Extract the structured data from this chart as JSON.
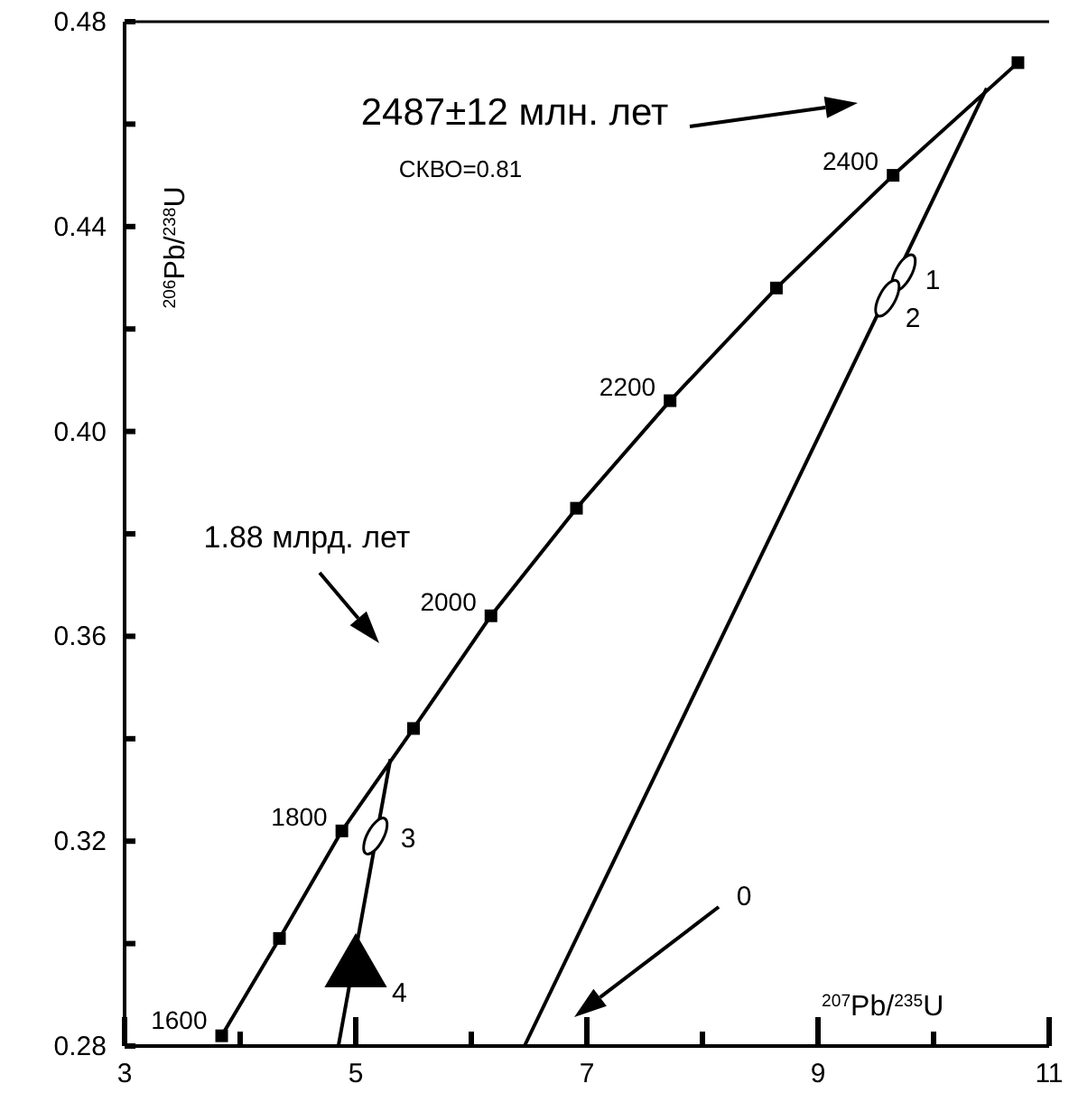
{
  "chart_data": {
    "type": "line",
    "xlabel": "$^{207}$Pb/$^{235}$U",
    "ylabel": "$^{206}$Pb/$^{238}$U",
    "xlim": [
      3,
      11
    ],
    "ylim": [
      0.28,
      0.48
    ],
    "xticks": [
      3,
      {
        "value": 4,
        "label": null
      },
      5,
      {
        "value": 6,
        "label": null
      },
      7,
      {
        "value": 8,
        "label": null
      },
      9,
      {
        "value": 10,
        "label": null
      },
      11
    ],
    "yticks": [
      0.28,
      {
        "value": 0.3,
        "label": null
      },
      0.32,
      {
        "value": 0.34,
        "label": null
      },
      0.36,
      {
        "value": 0.38,
        "label": null
      },
      {
        "value": 0.4,
        "label": "0.40"
      },
      {
        "value": 0.42,
        "label": null
      },
      0.44,
      {
        "value": 0.46,
        "label": null
      },
      0.48
    ],
    "grid": false,
    "series": [
      {
        "marker": "square",
        "color": "#000000",
        "x": [
          3.84,
          4.34,
          4.88,
          5.5,
          6.17,
          6.91,
          7.72,
          8.64,
          9.65,
          10.73
        ],
        "values": [
          0.282,
          0.301,
          0.322,
          0.342,
          0.364,
          0.385,
          0.406,
          0.428,
          0.45,
          0.472
        ]
      },
      {
        "marker": "none",
        "color": "#000000",
        "x": [
          6.46,
          10.46
        ],
        "values": [
          0.28,
          0.467
        ]
      },
      {
        "marker": "none",
        "color": "#000000",
        "x": [
          4.85,
          5.3
        ],
        "values": [
          0.28,
          0.336
        ]
      },
      {
        "type": "scatter",
        "marker": "circle",
        "color": "#000000",
        "x": [
          9.74,
          9.6,
          5.17
        ],
        "values": [
          0.431,
          0.426,
          0.321
        ]
      },
      {
        "type": "scatter",
        "marker": "triangle",
        "color": "#000000",
        "x": [
          5.0
        ],
        "values": [
          0.295
        ]
      }
    ],
    "annotations": [
      "2487±12 млн. лет",
      "СКВО=0.81",
      "1.88 млрд. лет",
      "0",
      {
        "text": "1600",
        "x": 3.84,
        "y": 0.282
      },
      {
        "text": "1800",
        "x": 4.88,
        "y": 0.322
      },
      {
        "text": "2000",
        "x": 6.17,
        "y": 0.364
      },
      {
        "text": "2200",
        "x": 7.72,
        "y": 0.406
      },
      {
        "text": "2400",
        "x": 9.65,
        "y": 0.45
      },
      {
        "text": "1",
        "x": 9.74,
        "y": 0.431
      },
      {
        "text": "2",
        "x": 9.6,
        "y": 0.426
      },
      {
        "text": "3",
        "x": 5.17,
        "y": 0.321
      },
      {
        "text": "4",
        "x": 5.0,
        "y": 0.295
      }
    ]
  }
}
